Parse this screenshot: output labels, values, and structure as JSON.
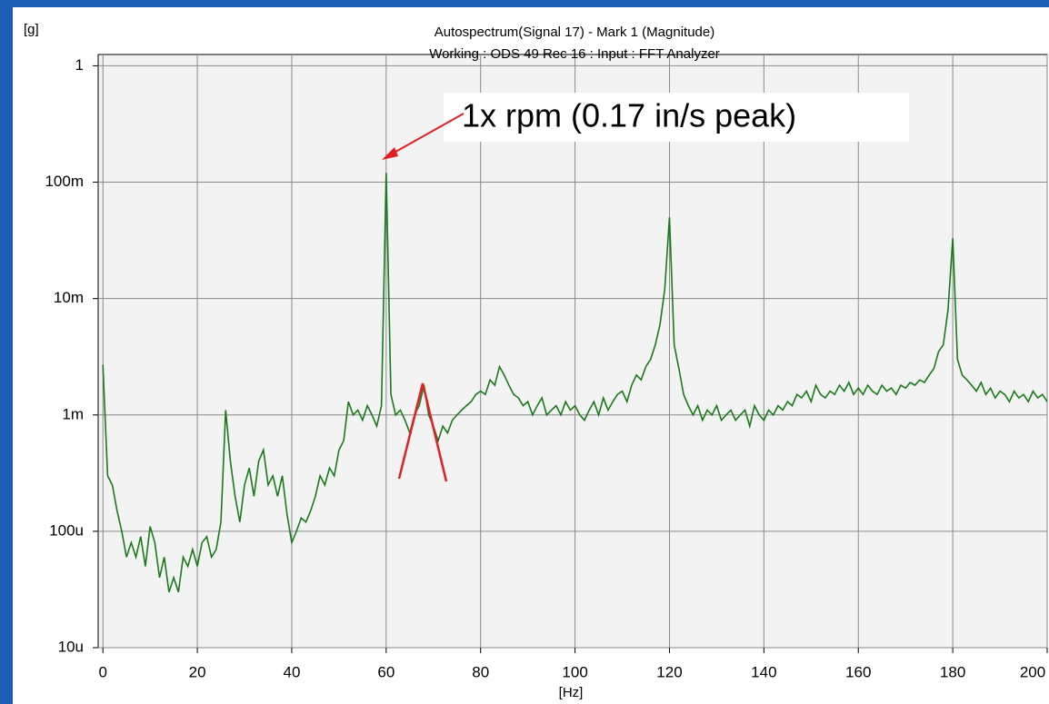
{
  "chart_data": {
    "type": "line",
    "title": "Autospectrum(Signal 17) - Mark 1 (Magnitude)",
    "subtitle": "Working : ODS 49 Rec 16 : Input : FFT Analyzer",
    "y_label": "[g]",
    "x_label": "[Hz]",
    "annotation": "1x rpm (0.17 in/s peak)",
    "ylog": true,
    "grid": true,
    "xlim": [
      -1,
      200
    ],
    "ylim": [
      1e-05,
      1.25
    ],
    "xticks": [
      0,
      20,
      40,
      60,
      80,
      100,
      120,
      140,
      160,
      180,
      200
    ],
    "yticks": [
      1,
      {
        "value": 0.1,
        "label": "100m"
      },
      {
        "value": 0.01,
        "label": "10m"
      },
      {
        "value": 0.001,
        "label": "1m"
      },
      {
        "value": 0.0001,
        "label": "100u"
      },
      {
        "value": 1e-05,
        "label": "10u"
      }
    ],
    "x": [
      0,
      1,
      2,
      3,
      4,
      5,
      6,
      7,
      8,
      9,
      10,
      11,
      12,
      13,
      14,
      15,
      16,
      17,
      18,
      19,
      20,
      21,
      22,
      23,
      24,
      25,
      26,
      27,
      28,
      29,
      30,
      31,
      32,
      33,
      34,
      35,
      36,
      37,
      38,
      39,
      40,
      41,
      42,
      43,
      44,
      45,
      46,
      47,
      48,
      49,
      50,
      51,
      52,
      53,
      54,
      55,
      56,
      57,
      58,
      59,
      60,
      61,
      62,
      63,
      64,
      65,
      66,
      67,
      68,
      69,
      70,
      71,
      72,
      73,
      74,
      75,
      76,
      77,
      78,
      79,
      80,
      81,
      82,
      83,
      84,
      85,
      86,
      87,
      88,
      89,
      90,
      91,
      92,
      93,
      94,
      95,
      96,
      97,
      98,
      99,
      100,
      101,
      102,
      103,
      104,
      105,
      106,
      107,
      108,
      109,
      110,
      111,
      112,
      113,
      114,
      115,
      116,
      117,
      118,
      119,
      120,
      121,
      122,
      123,
      124,
      125,
      126,
      127,
      128,
      129,
      130,
      131,
      132,
      133,
      134,
      135,
      136,
      137,
      138,
      139,
      140,
      141,
      142,
      143,
      144,
      145,
      146,
      147,
      148,
      149,
      150,
      151,
      152,
      153,
      154,
      155,
      156,
      157,
      158,
      159,
      160,
      161,
      162,
      163,
      164,
      165,
      166,
      167,
      168,
      169,
      170,
      171,
      172,
      173,
      174,
      175,
      176,
      177,
      178,
      179,
      180,
      181,
      182,
      183,
      184,
      185,
      186,
      187,
      188,
      189,
      190,
      191,
      192,
      193,
      194,
      195,
      196,
      197,
      198,
      199,
      200
    ],
    "series": [
      {
        "color": "#1a7a1a",
        "values": [
          0.0027,
          0.0003,
          0.00025,
          0.00015,
          0.0001,
          6e-05,
          8e-05,
          6e-05,
          9e-05,
          5e-05,
          0.00011,
          8e-05,
          4e-05,
          6e-05,
          3e-05,
          4e-05,
          3e-05,
          6e-05,
          5e-05,
          7e-05,
          5e-05,
          8e-05,
          9e-05,
          6e-05,
          7e-05,
          0.00012,
          0.0011,
          0.0004,
          0.0002,
          0.00012,
          0.00025,
          0.00035,
          0.0002,
          0.0004,
          0.0005,
          0.00025,
          0.0003,
          0.0002,
          0.0003,
          0.00014,
          8e-05,
          0.0001,
          0.00013,
          0.00012,
          0.00015,
          0.0002,
          0.0003,
          0.00025,
          0.00035,
          0.0003,
          0.0005,
          0.0006,
          0.0013,
          0.001,
          0.0011,
          0.0009,
          0.0012,
          0.001,
          0.0008,
          0.0012,
          0.12,
          0.0015,
          0.001,
          0.0011,
          0.0009,
          0.0007,
          0.001,
          0.0012,
          0.0018,
          0.001,
          0.0008,
          0.0006,
          0.0008,
          0.0007,
          0.0009,
          0.001,
          0.0011,
          0.0012,
          0.0013,
          0.0015,
          0.0016,
          0.0015,
          0.002,
          0.0018,
          0.0026,
          0.0022,
          0.0018,
          0.0015,
          0.0014,
          0.0012,
          0.0013,
          0.001,
          0.0012,
          0.0014,
          0.001,
          0.0011,
          0.0012,
          0.001,
          0.0013,
          0.0011,
          0.0012,
          0.001,
          0.0009,
          0.0011,
          0.0013,
          0.001,
          0.0014,
          0.0011,
          0.0013,
          0.0015,
          0.0016,
          0.0013,
          0.0018,
          0.0022,
          0.002,
          0.0026,
          0.003,
          0.004,
          0.006,
          0.012,
          0.05,
          0.004,
          0.0025,
          0.0015,
          0.0012,
          0.001,
          0.0012,
          0.0009,
          0.0011,
          0.001,
          0.0012,
          0.0009,
          0.001,
          0.0011,
          0.0009,
          0.001,
          0.0011,
          0.0008,
          0.0012,
          0.001,
          0.0009,
          0.0011,
          0.001,
          0.0012,
          0.0011,
          0.0013,
          0.0012,
          0.0015,
          0.0014,
          0.0016,
          0.0013,
          0.0018,
          0.0015,
          0.0014,
          0.0016,
          0.0015,
          0.0018,
          0.0016,
          0.0019,
          0.0015,
          0.0017,
          0.0015,
          0.0018,
          0.0016,
          0.0015,
          0.0018,
          0.0016,
          0.0017,
          0.0015,
          0.0018,
          0.0017,
          0.0019,
          0.0018,
          0.002,
          0.0019,
          0.0022,
          0.0025,
          0.0035,
          0.004,
          0.008,
          0.033,
          0.003,
          0.0022,
          0.002,
          0.0018,
          0.0016,
          0.0019,
          0.0015,
          0.0017,
          0.0014,
          0.0016,
          0.0015,
          0.0013,
          0.0016,
          0.0014,
          0.0015,
          0.0013,
          0.0016,
          0.0014,
          0.0015,
          0.0013
        ]
      }
    ]
  }
}
